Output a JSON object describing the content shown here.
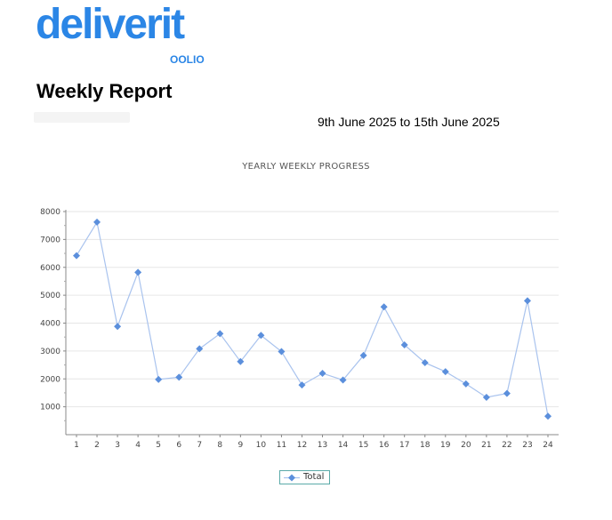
{
  "header": {
    "logo_text": "deliverit",
    "logo_sub": "OOLIO",
    "report_title": "Weekly Report",
    "date_range": "9th June 2025 to 15th June 2025"
  },
  "colors": {
    "brand": "#2b86e6",
    "series": "#5b8fdc",
    "line": "#a9c3ee",
    "grid": "#e6e6e6"
  },
  "chart_data": {
    "type": "line",
    "title": "YEARLY WEEKLY PROGRESS",
    "xlabel": "",
    "ylabel": "",
    "x": [
      1,
      2,
      3,
      4,
      5,
      6,
      7,
      8,
      9,
      10,
      11,
      12,
      13,
      14,
      15,
      16,
      17,
      18,
      19,
      20,
      21,
      22,
      23,
      24
    ],
    "series": [
      {
        "name": "Total",
        "values": [
          6420,
          7620,
          3880,
          5820,
          1980,
          2060,
          3080,
          3620,
          2620,
          3560,
          2980,
          1780,
          2200,
          1960,
          2840,
          4580,
          3220,
          2580,
          2260,
          1820,
          1340,
          1480,
          4800,
          660
        ]
      }
    ],
    "ylim": [
      0,
      8000
    ],
    "yticks": [
      1000,
      2000,
      3000,
      4000,
      5000,
      6000,
      7000,
      8000
    ],
    "grid": true,
    "legend": "bottom-center"
  }
}
